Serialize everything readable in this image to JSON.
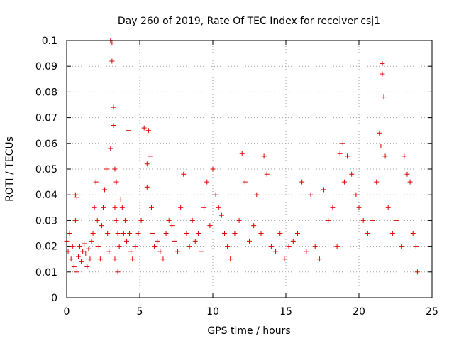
{
  "chart_data": {
    "type": "scatter",
    "title": "Day 260 of 2019, Rate Of TEC Index for receiver csj1",
    "xlabel": "GPS time / hours",
    "ylabel": "ROTI / TECUs",
    "xlim": [
      0,
      25
    ],
    "ylim": [
      0,
      0.1
    ],
    "xticks": [
      0,
      5,
      10,
      15,
      20,
      25
    ],
    "xtick_labels": [
      "0",
      "5",
      "10",
      "15",
      "20",
      "25"
    ],
    "yticks": [
      0,
      0.01,
      0.02,
      0.03,
      0.04,
      0.05,
      0.06,
      0.07,
      0.08,
      0.09,
      0.1
    ],
    "ytick_labels": [
      "0",
      "0.01",
      "0.02",
      "0.03",
      "0.04",
      "0.05",
      "0.06",
      "0.07",
      "0.08",
      "0.09",
      "0.1"
    ],
    "grid": true,
    "legend": "none",
    "marker": "+",
    "color": "#e00000",
    "series": [
      {
        "name": "ROTI",
        "x": [
          0.0,
          0.1,
          0.2,
          0.3,
          0.4,
          0.5,
          0.6,
          0.6,
          0.7,
          0.7,
          0.8,
          0.9,
          1.0,
          1.1,
          1.2,
          1.3,
          1.4,
          1.5,
          1.6,
          1.7,
          1.8,
          1.9,
          2.0,
          2.1,
          2.2,
          2.3,
          2.4,
          2.5,
          2.6,
          2.7,
          2.8,
          2.9,
          3.0,
          3.0,
          3.1,
          3.1,
          3.2,
          3.2,
          3.3,
          3.3,
          3.3,
          3.4,
          3.4,
          3.5,
          3.5,
          3.6,
          3.7,
          3.8,
          3.9,
          4.0,
          4.1,
          4.2,
          4.3,
          4.4,
          4.5,
          4.7,
          4.9,
          5.1,
          5.3,
          5.5,
          5.5,
          5.6,
          5.7,
          5.8,
          5.9,
          6.0,
          6.2,
          6.4,
          6.6,
          6.8,
          7.0,
          7.2,
          7.4,
          7.6,
          7.8,
          8.0,
          8.2,
          8.4,
          8.6,
          8.8,
          9.0,
          9.2,
          9.4,
          9.6,
          9.8,
          10.0,
          10.2,
          10.4,
          10.6,
          10.8,
          11.0,
          11.2,
          11.5,
          11.8,
          12.0,
          12.2,
          12.5,
          12.8,
          13.0,
          13.3,
          13.5,
          13.7,
          14.0,
          14.3,
          14.6,
          14.9,
          15.2,
          15.5,
          15.8,
          16.1,
          16.4,
          16.7,
          17.0,
          17.3,
          17.6,
          17.9,
          18.2,
          18.5,
          18.7,
          18.9,
          19.0,
          19.2,
          19.5,
          19.8,
          20.0,
          20.3,
          20.6,
          20.9,
          21.2,
          21.4,
          21.5,
          21.6,
          21.6,
          21.7,
          21.8,
          22.0,
          22.3,
          22.6,
          22.9,
          23.1,
          23.3,
          23.5,
          23.7,
          23.9,
          24.0
        ],
        "y": [
          0.022,
          0.018,
          0.025,
          0.015,
          0.02,
          0.012,
          0.04,
          0.03,
          0.039,
          0.01,
          0.016,
          0.02,
          0.014,
          0.018,
          0.021,
          0.017,
          0.012,
          0.019,
          0.015,
          0.022,
          0.025,
          0.035,
          0.045,
          0.03,
          0.02,
          0.015,
          0.028,
          0.035,
          0.042,
          0.05,
          0.025,
          0.018,
          0.058,
          0.1,
          0.092,
          0.099,
          0.074,
          0.067,
          0.05,
          0.035,
          0.015,
          0.045,
          0.03,
          0.025,
          0.01,
          0.02,
          0.038,
          0.035,
          0.025,
          0.03,
          0.022,
          0.065,
          0.025,
          0.018,
          0.015,
          0.02,
          0.025,
          0.03,
          0.066,
          0.052,
          0.043,
          0.065,
          0.055,
          0.035,
          0.025,
          0.02,
          0.022,
          0.018,
          0.015,
          0.025,
          0.03,
          0.028,
          0.022,
          0.018,
          0.035,
          0.048,
          0.025,
          0.02,
          0.03,
          0.022,
          0.025,
          0.018,
          0.035,
          0.045,
          0.028,
          0.05,
          0.04,
          0.035,
          0.032,
          0.025,
          0.02,
          0.015,
          0.025,
          0.03,
          0.056,
          0.045,
          0.022,
          0.028,
          0.04,
          0.025,
          0.055,
          0.048,
          0.02,
          0.018,
          0.025,
          0.015,
          0.02,
          0.022,
          0.025,
          0.045,
          0.018,
          0.04,
          0.02,
          0.015,
          0.042,
          0.03,
          0.035,
          0.02,
          0.056,
          0.06,
          0.045,
          0.055,
          0.048,
          0.04,
          0.035,
          0.03,
          0.025,
          0.03,
          0.045,
          0.064,
          0.059,
          0.087,
          0.091,
          0.078,
          0.055,
          0.035,
          0.025,
          0.03,
          0.02,
          0.055,
          0.048,
          0.045,
          0.025,
          0.02,
          0.01
        ]
      }
    ]
  }
}
